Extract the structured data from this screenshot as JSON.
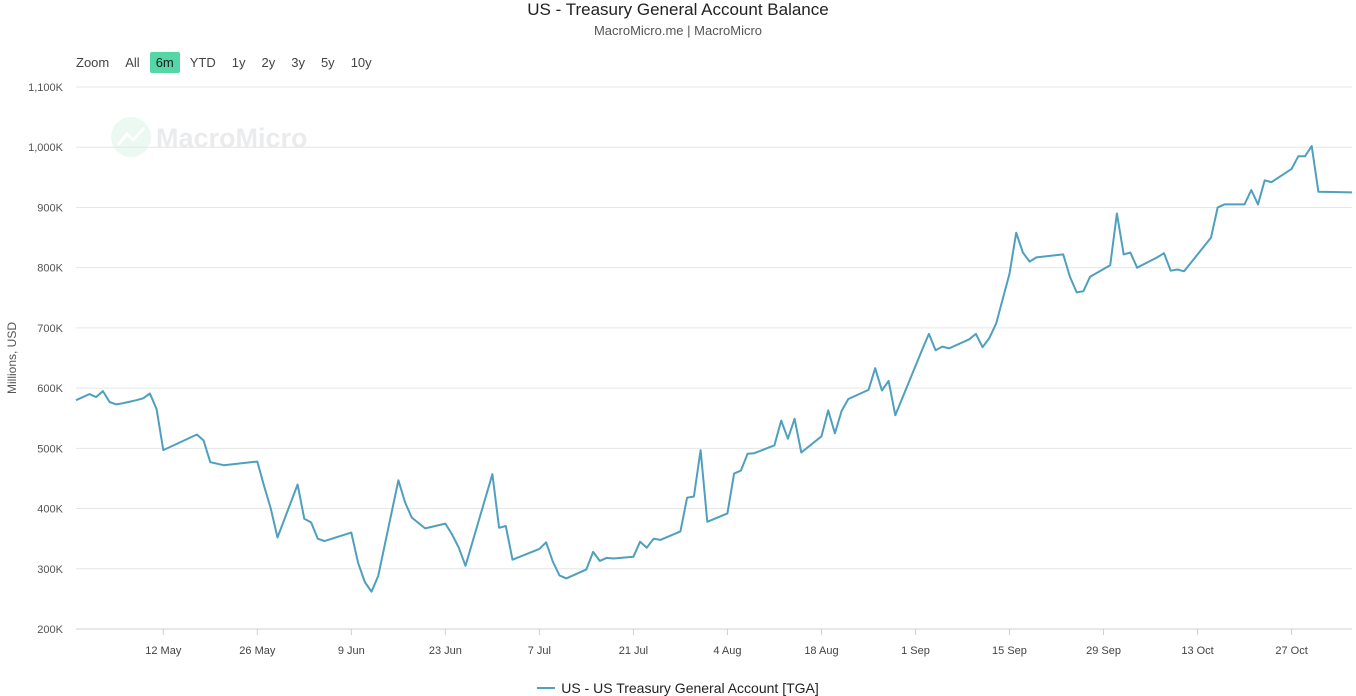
{
  "header": {
    "title": "US - Treasury General Account Balance",
    "subtitle": "MacroMicro.me | MacroMicro"
  },
  "range_selector": {
    "label": "Zoom",
    "buttons": [
      "All",
      "6m",
      "YTD",
      "1y",
      "2y",
      "3y",
      "5y",
      "10y"
    ],
    "active": "6m"
  },
  "watermark": "MacroMicro",
  "legend": {
    "label": "US - US Treasury General Account [TGA]"
  },
  "colors": {
    "series": "#4f9fbf",
    "active_button": "#55d6a6",
    "grid": "#e6e6e6"
  },
  "chart_data": {
    "type": "line",
    "title": "US - Treasury General Account Balance",
    "subtitle": "MacroMicro.me | MacroMicro",
    "ylabel": "Millions, USD",
    "xlabel": "",
    "ylim": [
      200000,
      1100000
    ],
    "yticks": [
      200000,
      300000,
      400000,
      500000,
      600000,
      700000,
      800000,
      900000,
      1000000,
      1100000
    ],
    "ytick_labels": [
      "200K",
      "300K",
      "400K",
      "500K",
      "600K",
      "700K",
      "800K",
      "900K",
      "1,000K",
      "1,100K"
    ],
    "xlim": [
      "2024-04-29",
      "2024-11-05"
    ],
    "xticks": [
      "2024-05-12",
      "2024-05-26",
      "2024-06-09",
      "2024-06-23",
      "2024-07-07",
      "2024-07-21",
      "2024-08-04",
      "2024-08-18",
      "2024-09-01",
      "2024-09-15",
      "2024-09-29",
      "2024-10-13",
      "2024-10-27"
    ],
    "xtick_labels": [
      "12 May",
      "26 May",
      "9 Jun",
      "23 Jun",
      "7 Jul",
      "21 Jul",
      "4 Aug",
      "18 Aug",
      "1 Sep",
      "15 Sep",
      "29 Sep",
      "13 Oct",
      "27 Oct"
    ],
    "grid": true,
    "legend_position": "bottom-center",
    "series": [
      {
        "name": "US - US Treasury General Account [TGA]",
        "color": "#4f9fbf",
        "points": [
          [
            "2024-04-29",
            580000
          ],
          [
            "2024-05-01",
            590000
          ],
          [
            "2024-05-02",
            585000
          ],
          [
            "2024-05-03",
            595000
          ],
          [
            "2024-05-04",
            577000
          ],
          [
            "2024-05-05",
            573000
          ],
          [
            "2024-05-06",
            575000
          ],
          [
            "2024-05-08",
            580000
          ],
          [
            "2024-05-09",
            583000
          ],
          [
            "2024-05-10",
            591000
          ],
          [
            "2024-05-11",
            565000
          ],
          [
            "2024-05-12",
            497000
          ],
          [
            "2024-05-17",
            523000
          ],
          [
            "2024-05-18",
            513000
          ],
          [
            "2024-05-19",
            477000
          ],
          [
            "2024-05-21",
            472000
          ],
          [
            "2024-05-25",
            477000
          ],
          [
            "2024-05-26",
            478000
          ],
          [
            "2024-05-27",
            438000
          ],
          [
            "2024-05-28",
            400000
          ],
          [
            "2024-05-29",
            352000
          ],
          [
            "2024-06-01",
            440000
          ],
          [
            "2024-06-02",
            383000
          ],
          [
            "2024-06-03",
            377000
          ],
          [
            "2024-06-04",
            350000
          ],
          [
            "2024-06-05",
            346000
          ],
          [
            "2024-06-09",
            360000
          ],
          [
            "2024-06-10",
            310000
          ],
          [
            "2024-06-11",
            278000
          ],
          [
            "2024-06-12",
            262000
          ],
          [
            "2024-06-13",
            288000
          ],
          [
            "2024-06-16",
            447000
          ],
          [
            "2024-06-17",
            410000
          ],
          [
            "2024-06-18",
            385000
          ],
          [
            "2024-06-20",
            367000
          ],
          [
            "2024-06-23",
            375000
          ],
          [
            "2024-06-24",
            357000
          ],
          [
            "2024-06-25",
            335000
          ],
          [
            "2024-06-26",
            305000
          ],
          [
            "2024-06-30",
            457000
          ],
          [
            "2024-07-01",
            368000
          ],
          [
            "2024-07-02",
            371000
          ],
          [
            "2024-07-03",
            315000
          ],
          [
            "2024-07-07",
            333000
          ],
          [
            "2024-07-08",
            344000
          ],
          [
            "2024-07-09",
            312000
          ],
          [
            "2024-07-10",
            289000
          ],
          [
            "2024-07-11",
            284000
          ],
          [
            "2024-07-14",
            299000
          ],
          [
            "2024-07-15",
            328000
          ],
          [
            "2024-07-16",
            313000
          ],
          [
            "2024-07-17",
            318000
          ],
          [
            "2024-07-18",
            317000
          ],
          [
            "2024-07-21",
            320000
          ],
          [
            "2024-07-22",
            345000
          ],
          [
            "2024-07-23",
            335000
          ],
          [
            "2024-07-24",
            350000
          ],
          [
            "2024-07-25",
            348000
          ],
          [
            "2024-07-28",
            362000
          ],
          [
            "2024-07-29",
            418000
          ],
          [
            "2024-07-30",
            420000
          ],
          [
            "2024-07-31",
            497000
          ],
          [
            "2024-08-01",
            378000
          ],
          [
            "2024-08-04",
            392000
          ],
          [
            "2024-08-05",
            458000
          ],
          [
            "2024-08-06",
            463000
          ],
          [
            "2024-08-07",
            491000
          ],
          [
            "2024-08-08",
            492000
          ],
          [
            "2024-08-11",
            505000
          ],
          [
            "2024-08-12",
            546000
          ],
          [
            "2024-08-13",
            516000
          ],
          [
            "2024-08-14",
            549000
          ],
          [
            "2024-08-15",
            493000
          ],
          [
            "2024-08-18",
            520000
          ],
          [
            "2024-08-19",
            563000
          ],
          [
            "2024-08-20",
            525000
          ],
          [
            "2024-08-21",
            562000
          ],
          [
            "2024-08-22",
            582000
          ],
          [
            "2024-08-25",
            597000
          ],
          [
            "2024-08-26",
            633000
          ],
          [
            "2024-08-27",
            596000
          ],
          [
            "2024-08-28",
            612000
          ],
          [
            "2024-08-29",
            555000
          ],
          [
            "2024-09-02",
            664000
          ],
          [
            "2024-09-03",
            690000
          ],
          [
            "2024-09-04",
            663000
          ],
          [
            "2024-09-05",
            669000
          ],
          [
            "2024-09-06",
            666000
          ],
          [
            "2024-09-09",
            681000
          ],
          [
            "2024-09-10",
            690000
          ],
          [
            "2024-09-11",
            668000
          ],
          [
            "2024-09-12",
            683000
          ],
          [
            "2024-09-13",
            707000
          ],
          [
            "2024-09-15",
            790000
          ],
          [
            "2024-09-16",
            858000
          ],
          [
            "2024-09-17",
            825000
          ],
          [
            "2024-09-18",
            810000
          ],
          [
            "2024-09-19",
            817000
          ],
          [
            "2024-09-23",
            822000
          ],
          [
            "2024-09-24",
            785000
          ],
          [
            "2024-09-25",
            759000
          ],
          [
            "2024-09-26",
            761000
          ],
          [
            "2024-09-27",
            785000
          ],
          [
            "2024-09-30",
            804000
          ],
          [
            "2024-10-01",
            890000
          ],
          [
            "2024-10-02",
            822000
          ],
          [
            "2024-10-03",
            825000
          ],
          [
            "2024-10-04",
            800000
          ],
          [
            "2024-10-07",
            817000
          ],
          [
            "2024-10-08",
            824000
          ],
          [
            "2024-10-09",
            795000
          ],
          [
            "2024-10-10",
            797000
          ],
          [
            "2024-10-11",
            794000
          ],
          [
            "2024-10-15",
            850000
          ],
          [
            "2024-10-16",
            900000
          ],
          [
            "2024-10-17",
            905000
          ],
          [
            "2024-10-20",
            905000
          ],
          [
            "2024-10-21",
            929000
          ],
          [
            "2024-10-22",
            905000
          ],
          [
            "2024-10-23",
            945000
          ],
          [
            "2024-10-24",
            942000
          ],
          [
            "2024-10-27",
            964000
          ],
          [
            "2024-10-28",
            985000
          ],
          [
            "2024-10-29",
            985000
          ],
          [
            "2024-10-30",
            1002000
          ],
          [
            "2024-10-31",
            926000
          ],
          [
            "2024-11-05",
            925000
          ]
        ]
      }
    ]
  }
}
